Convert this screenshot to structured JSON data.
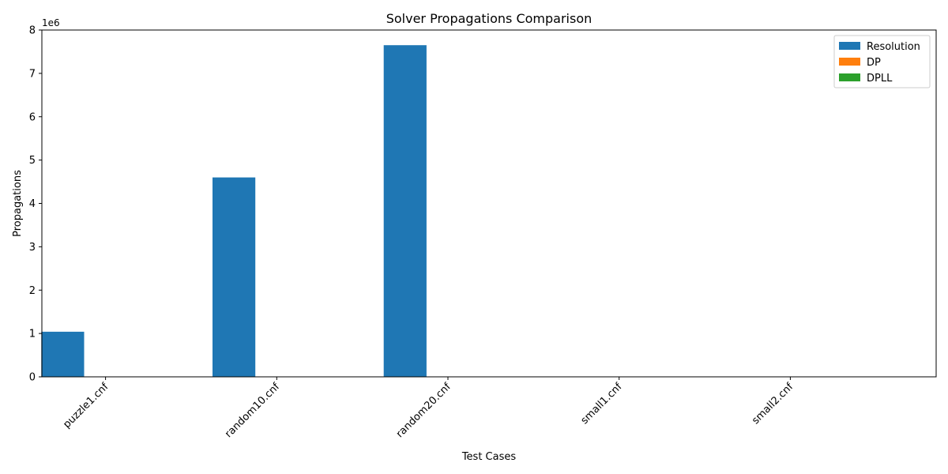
{
  "chart_data": {
    "type": "bar",
    "title": "Solver Propagations Comparison",
    "xlabel": "Test Cases",
    "ylabel": "Propagations",
    "y_offset_label": "1e6",
    "y_scale": 1000000,
    "ylim": [
      0,
      8000000
    ],
    "yticks": [
      0,
      1000000,
      2000000,
      3000000,
      4000000,
      5000000,
      6000000,
      7000000,
      8000000
    ],
    "ytick_labels": [
      "0",
      "1",
      "2",
      "3",
      "4",
      "5",
      "6",
      "7",
      "8"
    ],
    "categories": [
      "puzzle1.cnf",
      "random10.cnf",
      "random20.cnf",
      "small1.cnf",
      "small2.cnf"
    ],
    "series": [
      {
        "name": "Resolution",
        "color": "#1f77b4",
        "values": [
          1040000,
          4600000,
          7650000,
          0,
          0
        ]
      },
      {
        "name": "DP",
        "color": "#ff7f0e",
        "values": [
          0,
          0,
          0,
          0,
          0
        ]
      },
      {
        "name": "DPLL",
        "color": "#2ca02c",
        "values": [
          0,
          0,
          0,
          0,
          0
        ]
      }
    ],
    "legend_position": "top-right",
    "grid": false
  }
}
